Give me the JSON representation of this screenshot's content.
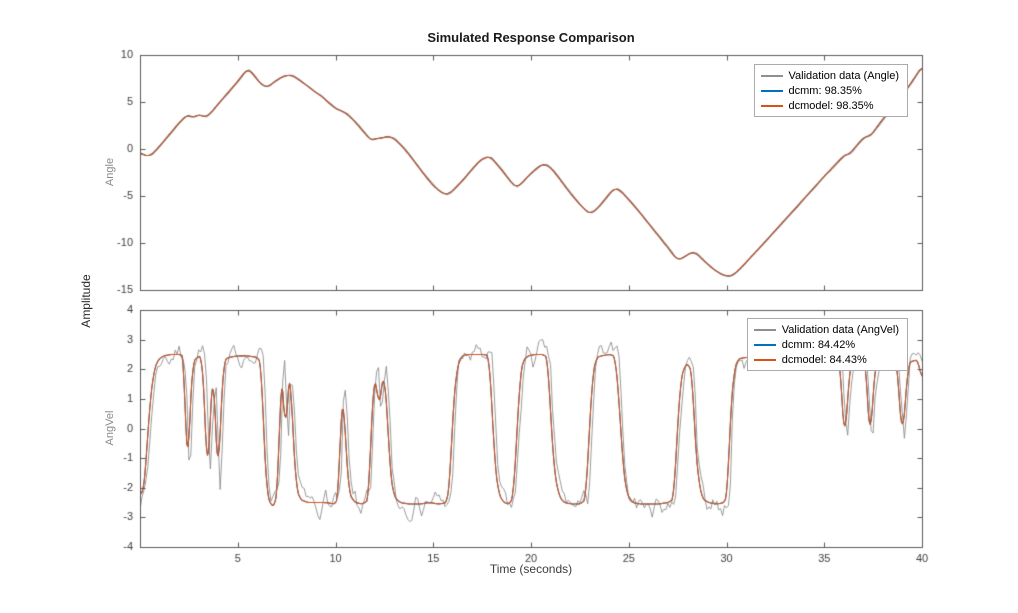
{
  "figure": {
    "title": "Simulated Response Comparison",
    "xlabel": "Time (seconds)",
    "shared_ylabel": "Amplitude"
  },
  "colors": {
    "validation": "#8f8f8f",
    "dcmm": "#0072BD",
    "dcmodel": "#D95319",
    "axis": "#5a5a5a",
    "tick_label": "#404040",
    "legend_border": "#ababab"
  },
  "chart_data": [
    {
      "type": "line",
      "title": "Simulated Response Comparison",
      "ylabel": "Angle",
      "xlabel": "Time (seconds)",
      "xlim": [
        0,
        40
      ],
      "ylim": [
        -15,
        10
      ],
      "xticks": [
        5,
        10,
        15,
        20,
        25,
        30,
        35,
        40
      ],
      "yticks": [
        -15,
        -10,
        -5,
        0,
        5,
        10
      ],
      "show_x_tick_labels": false,
      "grid": false,
      "legend_position": "northeast",
      "legend": [
        "Validation data (Angle)",
        "dcmm: 98.35%",
        "dcmodel: 98.35%"
      ],
      "series_names": [
        "validation",
        "dcmm",
        "dcmodel"
      ],
      "fit_percent": {
        "dcmm": 98.35,
        "dcmodel": 98.35
      },
      "smooth_window": 3,
      "noise_seed": 11,
      "validation_noise": 0.07,
      "validation_lag": 0.05,
      "validation_dt": 0.1,
      "model_keypoints": [
        [
          0,
          -0.4
        ],
        [
          0.3,
          -0.75
        ],
        [
          0.6,
          -0.6
        ],
        [
          1.0,
          0.3
        ],
        [
          1.5,
          1.55
        ],
        [
          2.0,
          2.8
        ],
        [
          2.4,
          3.6
        ],
        [
          2.7,
          3.35
        ],
        [
          3.0,
          3.65
        ],
        [
          3.35,
          3.4
        ],
        [
          3.6,
          3.8
        ],
        [
          4.0,
          4.8
        ],
        [
          4.5,
          6.0
        ],
        [
          5.0,
          7.2
        ],
        [
          5.4,
          8.3
        ],
        [
          5.55,
          8.45
        ],
        [
          5.8,
          7.9
        ],
        [
          6.1,
          7.1
        ],
        [
          6.4,
          6.6
        ],
        [
          6.6,
          6.7
        ],
        [
          6.9,
          7.2
        ],
        [
          7.2,
          7.6
        ],
        [
          7.5,
          7.85
        ],
        [
          7.8,
          7.8
        ],
        [
          8.1,
          7.4
        ],
        [
          8.5,
          6.8
        ],
        [
          9.0,
          6.0
        ],
        [
          9.3,
          5.6
        ],
        [
          9.6,
          5.0
        ],
        [
          10.0,
          4.3
        ],
        [
          10.35,
          4.0
        ],
        [
          10.6,
          3.7
        ],
        [
          11.0,
          2.9
        ],
        [
          11.4,
          1.9
        ],
        [
          11.8,
          0.95
        ],
        [
          12.1,
          1.1
        ],
        [
          12.4,
          1.2
        ],
        [
          12.7,
          1.35
        ],
        [
          13.0,
          1.1
        ],
        [
          13.4,
          0.3
        ],
        [
          13.8,
          -0.7
        ],
        [
          14.2,
          -1.8
        ],
        [
          14.6,
          -2.9
        ],
        [
          15.0,
          -3.9
        ],
        [
          15.4,
          -4.6
        ],
        [
          15.65,
          -4.85
        ],
        [
          15.9,
          -4.6
        ],
        [
          16.2,
          -4.0
        ],
        [
          16.6,
          -3.1
        ],
        [
          17.0,
          -2.1
        ],
        [
          17.4,
          -1.2
        ],
        [
          17.7,
          -0.85
        ],
        [
          17.95,
          -0.9
        ],
        [
          18.2,
          -1.5
        ],
        [
          18.6,
          -2.5
        ],
        [
          19.0,
          -3.6
        ],
        [
          19.25,
          -4.05
        ],
        [
          19.5,
          -3.7
        ],
        [
          19.8,
          -3.0
        ],
        [
          20.2,
          -2.2
        ],
        [
          20.55,
          -1.65
        ],
        [
          20.8,
          -1.7
        ],
        [
          21.1,
          -2.2
        ],
        [
          21.5,
          -3.3
        ],
        [
          22.0,
          -4.7
        ],
        [
          22.5,
          -5.9
        ],
        [
          22.9,
          -6.75
        ],
        [
          23.1,
          -6.8
        ],
        [
          23.4,
          -6.3
        ],
        [
          23.8,
          -5.3
        ],
        [
          24.1,
          -4.5
        ],
        [
          24.35,
          -4.2
        ],
        [
          24.6,
          -4.5
        ],
        [
          25.0,
          -5.4
        ],
        [
          25.5,
          -6.6
        ],
        [
          26.0,
          -7.9
        ],
        [
          26.5,
          -9.2
        ],
        [
          27.0,
          -10.5
        ],
        [
          27.4,
          -11.6
        ],
        [
          27.6,
          -11.75
        ],
        [
          27.9,
          -11.4
        ],
        [
          28.2,
          -11.0
        ],
        [
          28.45,
          -11.1
        ],
        [
          28.7,
          -11.6
        ],
        [
          29.0,
          -12.2
        ],
        [
          29.4,
          -12.9
        ],
        [
          29.8,
          -13.4
        ],
        [
          30.1,
          -13.55
        ],
        [
          30.4,
          -13.3
        ],
        [
          30.8,
          -12.5
        ],
        [
          31.2,
          -11.6
        ],
        [
          32.0,
          -9.8
        ],
        [
          33.0,
          -7.5
        ],
        [
          34.0,
          -5.2
        ],
        [
          35.0,
          -2.9
        ],
        [
          36.0,
          -0.7
        ],
        [
          36.3,
          -0.5
        ],
        [
          37.0,
          1.2
        ],
        [
          37.4,
          1.5
        ],
        [
          38.0,
          3.2
        ],
        [
          38.6,
          4.7
        ],
        [
          39.0,
          5.8
        ],
        [
          39.4,
          6.9
        ],
        [
          40,
          8.8
        ]
      ]
    },
    {
      "type": "line",
      "title": "",
      "ylabel": "AngVel",
      "xlabel": "Time (seconds)",
      "xlim": [
        0,
        40
      ],
      "ylim": [
        -4,
        4
      ],
      "xticks": [
        5,
        10,
        15,
        20,
        25,
        30,
        35,
        40
      ],
      "yticks": [
        -4,
        -3,
        -2,
        -1,
        0,
        1,
        2,
        3,
        4
      ],
      "show_x_tick_labels": true,
      "grid": false,
      "legend_position": "northeast",
      "legend": [
        "Validation data (AngVel)",
        "dcmm: 84.42%",
        "dcmodel: 84.43%"
      ],
      "series_names": [
        "validation",
        "dcmm",
        "dcmodel"
      ],
      "fit_percent": {
        "dcmm": 84.42,
        "dcmodel": 84.43
      },
      "smooth_window": 2,
      "noise_seed": 7,
      "validation_noise": 0.7,
      "validation_lag": 0.12,
      "validation_dt": 0.1,
      "model_keypoints": [
        [
          0,
          -2.1
        ],
        [
          0.15,
          -2.3
        ],
        [
          0.3,
          -1.2
        ],
        [
          0.5,
          0.8
        ],
        [
          0.7,
          1.9
        ],
        [
          0.9,
          2.3
        ],
        [
          1.2,
          2.45
        ],
        [
          1.6,
          2.5
        ],
        [
          2.1,
          2.5
        ],
        [
          2.25,
          2.4
        ],
        [
          2.35,
          -0.5
        ],
        [
          2.45,
          -1.6
        ],
        [
          2.55,
          0.6
        ],
        [
          2.7,
          2.2
        ],
        [
          2.9,
          2.4
        ],
        [
          3.15,
          2.45
        ],
        [
          3.3,
          1.0
        ],
        [
          3.45,
          -2.0
        ],
        [
          3.6,
          0.5
        ],
        [
          3.75,
          2.2
        ],
        [
          3.85,
          0.3
        ],
        [
          4.0,
          -1.9
        ],
        [
          4.15,
          0.8
        ],
        [
          4.3,
          2.3
        ],
        [
          4.55,
          2.4
        ],
        [
          5.0,
          2.45
        ],
        [
          5.5,
          2.45
        ],
        [
          6.0,
          2.4
        ],
        [
          6.2,
          2.2
        ],
        [
          6.35,
          -0.5
        ],
        [
          6.5,
          -2.2
        ],
        [
          6.7,
          -2.6
        ],
        [
          6.9,
          -2.6
        ],
        [
          7.05,
          -2.0
        ],
        [
          7.2,
          1.6
        ],
        [
          7.3,
          1.9
        ],
        [
          7.45,
          -0.9
        ],
        [
          7.55,
          1.5
        ],
        [
          7.7,
          1.8
        ],
        [
          7.85,
          -0.5
        ],
        [
          8.0,
          -2.0
        ],
        [
          8.2,
          -2.4
        ],
        [
          8.6,
          -2.5
        ],
        [
          9.0,
          -2.5
        ],
        [
          9.5,
          -2.5
        ],
        [
          10.0,
          -2.55
        ],
        [
          10.15,
          -2.3
        ],
        [
          10.3,
          0.9
        ],
        [
          10.4,
          1.05
        ],
        [
          10.55,
          -0.8
        ],
        [
          10.7,
          -2.2
        ],
        [
          11.0,
          -2.5
        ],
        [
          11.4,
          -2.55
        ],
        [
          11.7,
          -2.4
        ],
        [
          11.85,
          0.5
        ],
        [
          12.0,
          1.7
        ],
        [
          12.1,
          1.75
        ],
        [
          12.2,
          0.4
        ],
        [
          12.35,
          1.5
        ],
        [
          12.5,
          1.8
        ],
        [
          12.65,
          0.5
        ],
        [
          12.8,
          -1.5
        ],
        [
          13.0,
          -2.3
        ],
        [
          13.3,
          -2.5
        ],
        [
          13.8,
          -2.55
        ],
        [
          14.3,
          -2.55
        ],
        [
          14.8,
          -2.5
        ],
        [
          15.3,
          -2.55
        ],
        [
          15.7,
          -2.5
        ],
        [
          15.85,
          -1.8
        ],
        [
          16.0,
          0.5
        ],
        [
          16.2,
          2.0
        ],
        [
          16.45,
          2.45
        ],
        [
          16.8,
          2.5
        ],
        [
          17.2,
          2.5
        ],
        [
          17.6,
          2.5
        ],
        [
          17.85,
          2.45
        ],
        [
          18.0,
          0.8
        ],
        [
          18.15,
          -1.2
        ],
        [
          18.35,
          -2.2
        ],
        [
          18.6,
          -2.5
        ],
        [
          18.9,
          -2.55
        ],
        [
          19.1,
          -2.3
        ],
        [
          19.25,
          -0.5
        ],
        [
          19.45,
          1.8
        ],
        [
          19.6,
          2.3
        ],
        [
          19.85,
          2.45
        ],
        [
          20.2,
          2.5
        ],
        [
          20.6,
          2.5
        ],
        [
          20.85,
          2.4
        ],
        [
          21.0,
          0.5
        ],
        [
          21.2,
          -1.5
        ],
        [
          21.45,
          -2.3
        ],
        [
          21.7,
          -2.5
        ],
        [
          22.1,
          -2.55
        ],
        [
          22.5,
          -2.55
        ],
        [
          22.8,
          -2.4
        ],
        [
          22.95,
          -0.5
        ],
        [
          23.15,
          1.8
        ],
        [
          23.35,
          2.4
        ],
        [
          23.6,
          2.45
        ],
        [
          24.0,
          2.5
        ],
        [
          24.3,
          2.45
        ],
        [
          24.5,
          1.0
        ],
        [
          24.7,
          -1.2
        ],
        [
          24.9,
          -2.2
        ],
        [
          25.2,
          -2.5
        ],
        [
          25.6,
          -2.55
        ],
        [
          26.0,
          -2.55
        ],
        [
          26.5,
          -2.55
        ],
        [
          27.0,
          -2.5
        ],
        [
          27.3,
          -2.4
        ],
        [
          27.45,
          -0.5
        ],
        [
          27.65,
          1.6
        ],
        [
          27.85,
          2.1
        ],
        [
          28.05,
          2.2
        ],
        [
          28.25,
          1.8
        ],
        [
          28.4,
          -0.5
        ],
        [
          28.6,
          -1.9
        ],
        [
          28.8,
          -2.4
        ],
        [
          29.1,
          -2.5
        ],
        [
          29.5,
          -2.55
        ],
        [
          29.9,
          -2.5
        ],
        [
          30.05,
          -2.2
        ],
        [
          30.2,
          0.5
        ],
        [
          30.4,
          2.0
        ],
        [
          30.6,
          2.35
        ],
        [
          31.0,
          2.4
        ],
        [
          32.0,
          2.4
        ],
        [
          33.0,
          2.38
        ],
        [
          34.0,
          2.4
        ],
        [
          35.0,
          2.38
        ],
        [
          35.8,
          2.4
        ],
        [
          35.95,
          0.3
        ],
        [
          36.05,
          -0.4
        ],
        [
          36.2,
          1.0
        ],
        [
          36.35,
          2.3
        ],
        [
          36.8,
          2.35
        ],
        [
          37.1,
          2.4
        ],
        [
          37.25,
          0.5
        ],
        [
          37.35,
          -0.5
        ],
        [
          37.5,
          1.2
        ],
        [
          37.65,
          2.3
        ],
        [
          38.2,
          2.35
        ],
        [
          38.7,
          2.4
        ],
        [
          38.85,
          0.8
        ],
        [
          39.0,
          -0.3
        ],
        [
          39.15,
          0.9
        ],
        [
          39.3,
          2.2
        ],
        [
          39.6,
          2.3
        ],
        [
          39.8,
          2.3
        ],
        [
          40,
          1.6
        ]
      ]
    }
  ]
}
